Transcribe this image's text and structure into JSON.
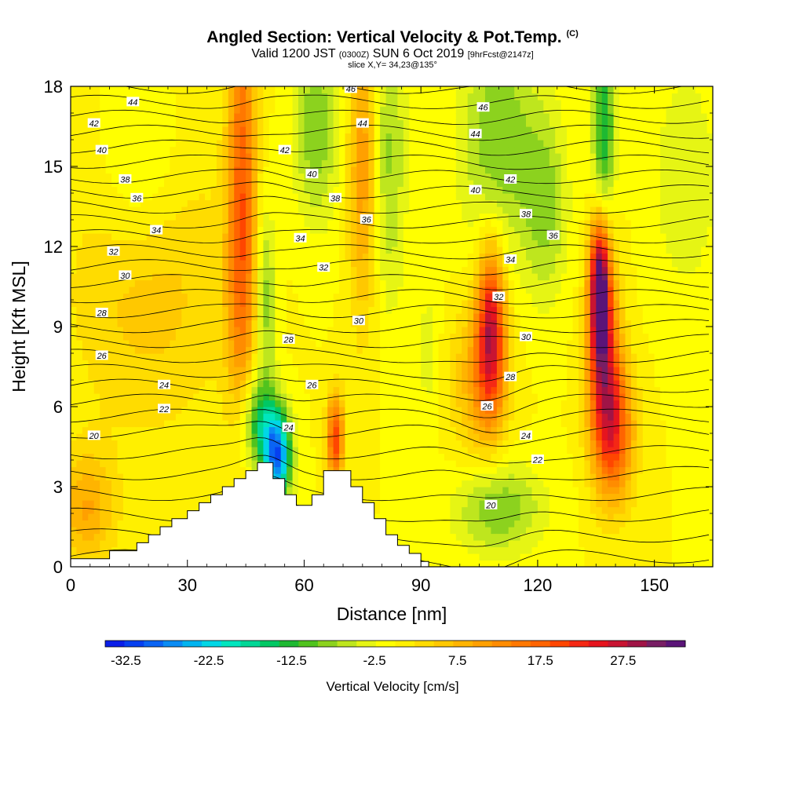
{
  "title": {
    "main": "Angled Section: Vertical Velocity & Pot.Temp.",
    "tag": "(C)",
    "valid_prefix": "Valid 1200 JST",
    "valid_utc": "(0300Z)",
    "valid_date": "SUN 6 Oct 2019",
    "forecast": "[9hrFcst@2147z]",
    "slice": "slice X,Y= 34,23@135°"
  },
  "chart_data": {
    "type": "heatmap",
    "xlabel": "Distance [nm]",
    "ylabel": "Height [Kft MSL]",
    "xlim": [
      0,
      165
    ],
    "ylim": [
      0,
      18
    ],
    "x_ticks": [
      0,
      30,
      60,
      90,
      120,
      150
    ],
    "y_ticks": [
      0,
      3,
      6,
      9,
      12,
      15,
      18
    ],
    "colorbar": {
      "label": "Vertical Velocity [cm/s]",
      "min": -35,
      "max": 35,
      "step": 2.5,
      "tick_labels": [
        -32.5,
        -22.5,
        -12.5,
        -2.5,
        7.5,
        17.5,
        27.5
      ],
      "colors": [
        "#0a1ee8",
        "#0640f0",
        "#0a64f4",
        "#0a8cf4",
        "#00b4f0",
        "#00d7e6",
        "#00e6be",
        "#00d796",
        "#00c864",
        "#1eb932",
        "#50c31e",
        "#8cd21e",
        "#bee61e",
        "#e6f514",
        "#ffff00",
        "#fff000",
        "#ffdc00",
        "#ffc800",
        "#ffb400",
        "#ffa000",
        "#ff8c00",
        "#ff7800",
        "#ff6400",
        "#ff4600",
        "#f52814",
        "#e6141e",
        "#c81432",
        "#a01446",
        "#781e64",
        "#5a1478"
      ]
    },
    "terrain": [
      [
        0,
        0.3
      ],
      [
        10,
        0.3
      ],
      [
        10,
        0.6
      ],
      [
        17,
        0.6
      ],
      [
        17,
        0.9
      ],
      [
        20,
        0.9
      ],
      [
        20,
        1.2
      ],
      [
        23,
        1.2
      ],
      [
        23,
        1.5
      ],
      [
        26,
        1.5
      ],
      [
        26,
        1.8
      ],
      [
        30,
        1.8
      ],
      [
        30,
        2.1
      ],
      [
        33,
        2.1
      ],
      [
        33,
        2.4
      ],
      [
        36,
        2.4
      ],
      [
        36,
        2.7
      ],
      [
        39,
        2.7
      ],
      [
        39,
        3.0
      ],
      [
        42,
        3.0
      ],
      [
        42,
        3.3
      ],
      [
        45,
        3.3
      ],
      [
        45,
        3.6
      ],
      [
        48,
        3.6
      ],
      [
        48,
        3.9
      ],
      [
        52,
        3.9
      ],
      [
        52,
        3.3
      ],
      [
        55,
        3.3
      ],
      [
        55,
        2.7
      ],
      [
        58,
        2.7
      ],
      [
        58,
        2.3
      ],
      [
        62,
        2.3
      ],
      [
        62,
        2.7
      ],
      [
        65,
        2.7
      ],
      [
        65,
        3.6
      ],
      [
        72,
        3.6
      ],
      [
        72,
        3.0
      ],
      [
        75,
        3.0
      ],
      [
        75,
        2.4
      ],
      [
        78,
        2.4
      ],
      [
        78,
        1.8
      ],
      [
        81,
        1.8
      ],
      [
        81,
        1.2
      ],
      [
        84,
        1.2
      ],
      [
        84,
        0.8
      ],
      [
        87,
        0.8
      ],
      [
        87,
        0.5
      ],
      [
        90,
        0.5
      ],
      [
        90,
        0.2
      ],
      [
        92,
        0.2
      ]
    ],
    "features": [
      {
        "x": 44,
        "y": 15.5,
        "sx": 2.5,
        "sy": 4.5,
        "w": 17
      },
      {
        "x": 44,
        "y": 9.5,
        "sx": 3,
        "sy": 3,
        "w": 9
      },
      {
        "x": 75,
        "y": 15,
        "sx": 2.5,
        "sy": 4,
        "w": 12
      },
      {
        "x": 68,
        "y": 4.8,
        "sx": 1.5,
        "sy": 1.2,
        "w": 22
      },
      {
        "x": 108,
        "y": 9.0,
        "sx": 2.5,
        "sy": 2.2,
        "w": 26
      },
      {
        "x": 105,
        "y": 7.0,
        "sx": 5,
        "sy": 2,
        "w": 10
      },
      {
        "x": 136,
        "y": 10.5,
        "sx": 1.8,
        "sy": 1.8,
        "w": 35
      },
      {
        "x": 137,
        "y": 7.5,
        "sx": 3,
        "sy": 2.5,
        "w": 22
      },
      {
        "x": 140,
        "y": 5.0,
        "sx": 3.5,
        "sy": 1.8,
        "w": 18
      },
      {
        "x": 4,
        "y": 2.2,
        "sx": 5,
        "sy": 1.5,
        "w": 10
      },
      {
        "x": 20,
        "y": 11.0,
        "sx": 14,
        "sy": 4,
        "w": 7
      },
      {
        "x": 53,
        "y": 4.2,
        "sx": 2.5,
        "sy": 1.2,
        "w": -32
      },
      {
        "x": 48,
        "y": 5.5,
        "sx": 3,
        "sy": 1.2,
        "w": -14
      },
      {
        "x": 50,
        "y": 10.0,
        "sx": 2,
        "sy": 2.5,
        "w": -10
      },
      {
        "x": 63,
        "y": 16.5,
        "sx": 4,
        "sy": 2.5,
        "w": -10
      },
      {
        "x": 82,
        "y": 15.5,
        "sx": 3,
        "sy": 4,
        "w": -8
      },
      {
        "x": 110,
        "y": 16,
        "sx": 7,
        "sy": 3,
        "w": -10
      },
      {
        "x": 122,
        "y": 13.5,
        "sx": 4,
        "sy": 2.5,
        "w": -8
      },
      {
        "x": 137,
        "y": 16.5,
        "sx": 2,
        "sy": 2.5,
        "w": -15
      },
      {
        "x": 18,
        "y": 14.5,
        "sx": 8,
        "sy": 2.5,
        "w": -6
      },
      {
        "x": 110,
        "y": 2.2,
        "sx": 8,
        "sy": 1.2,
        "w": -10
      },
      {
        "x": 92,
        "y": 8.0,
        "sx": 2,
        "sy": 2,
        "w": -4
      },
      {
        "x": 158,
        "y": 14.5,
        "sx": 6,
        "sy": 3,
        "w": -5
      }
    ],
    "contour_labels": [
      {
        "x": 16,
        "y": 17.4,
        "text": "44"
      },
      {
        "x": 6,
        "y": 16.6,
        "text": "42"
      },
      {
        "x": 8,
        "y": 15.6,
        "text": "40"
      },
      {
        "x": 14,
        "y": 14.5,
        "text": "38"
      },
      {
        "x": 17,
        "y": 13.8,
        "text": "36"
      },
      {
        "x": 22,
        "y": 12.6,
        "text": "34"
      },
      {
        "x": 11,
        "y": 11.8,
        "text": "32"
      },
      {
        "x": 14,
        "y": 10.9,
        "text": "30"
      },
      {
        "x": 8,
        "y": 9.5,
        "text": "28"
      },
      {
        "x": 8,
        "y": 7.9,
        "text": "26"
      },
      {
        "x": 24,
        "y": 6.8,
        "text": "24"
      },
      {
        "x": 24,
        "y": 5.9,
        "text": "22"
      },
      {
        "x": 6,
        "y": 4.9,
        "text": "20"
      },
      {
        "x": 72,
        "y": 17.9,
        "text": "46"
      },
      {
        "x": 75,
        "y": 16.6,
        "text": "44"
      },
      {
        "x": 55,
        "y": 15.6,
        "text": "42"
      },
      {
        "x": 62,
        "y": 14.7,
        "text": "40"
      },
      {
        "x": 68,
        "y": 13.8,
        "text": "38"
      },
      {
        "x": 76,
        "y": 13.0,
        "text": "36"
      },
      {
        "x": 59,
        "y": 12.3,
        "text": "34"
      },
      {
        "x": 65,
        "y": 11.2,
        "text": "32"
      },
      {
        "x": 74,
        "y": 9.2,
        "text": "30"
      },
      {
        "x": 56,
        "y": 8.5,
        "text": "28"
      },
      {
        "x": 62,
        "y": 6.8,
        "text": "26"
      },
      {
        "x": 56,
        "y": 5.2,
        "text": "24"
      },
      {
        "x": 106,
        "y": 17.2,
        "text": "46"
      },
      {
        "x": 104,
        "y": 16.2,
        "text": "44"
      },
      {
        "x": 113,
        "y": 14.5,
        "text": "42"
      },
      {
        "x": 104,
        "y": 14.1,
        "text": "40"
      },
      {
        "x": 117,
        "y": 13.2,
        "text": "38"
      },
      {
        "x": 124,
        "y": 12.4,
        "text": "36"
      },
      {
        "x": 113,
        "y": 11.5,
        "text": "34"
      },
      {
        "x": 110,
        "y": 10.1,
        "text": "32"
      },
      {
        "x": 117,
        "y": 8.6,
        "text": "30"
      },
      {
        "x": 113,
        "y": 7.1,
        "text": "28"
      },
      {
        "x": 107,
        "y": 6.0,
        "text": "26"
      },
      {
        "x": 117,
        "y": 4.9,
        "text": "24"
      },
      {
        "x": 120,
        "y": 4.0,
        "text": "22"
      },
      {
        "x": 108,
        "y": 2.3,
        "text": "20"
      }
    ]
  }
}
